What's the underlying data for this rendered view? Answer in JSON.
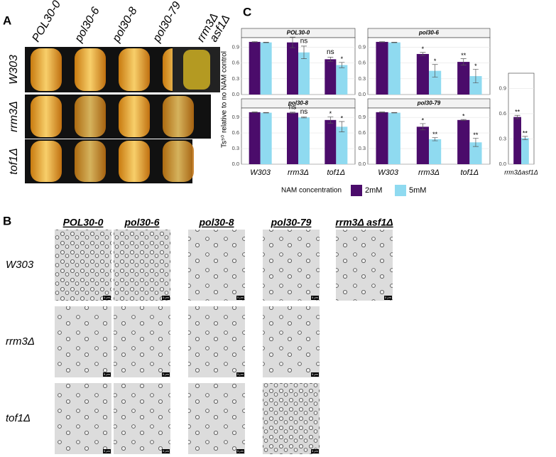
{
  "panel_a": {
    "label": "A",
    "columns": [
      "POL30-0",
      "pol30-6",
      "pol30-8",
      "pol30-79",
      [
        "rrm3Δ",
        "asf1Δ"
      ]
    ],
    "rows": [
      "W303",
      "rrm3Δ",
      "tof1Δ"
    ]
  },
  "panel_b": {
    "label": "B",
    "columns": [
      "POL30-0",
      "pol30-6",
      "pol30-8",
      "pol30-79",
      "rrm3Δ asf1Δ"
    ],
    "rows": [
      "W303",
      "rrm3Δ",
      "tof1Δ"
    ],
    "scale_bar": "5 μm"
  },
  "chart_data": {
    "type": "bar",
    "label": "C",
    "y_label": "Ts⁵⁰ relative to no NAM control",
    "legend_title": "NAM concentration",
    "series": [
      {
        "name": "2mM",
        "color": "#4b0c6b"
      },
      {
        "name": "5mM",
        "color": "#8fdaf0"
      }
    ],
    "categories": [
      "W303",
      "rrm3Δ",
      "tof1Δ"
    ],
    "ylim": [
      0,
      1.08
    ],
    "yticks": [
      {
        "value": 0,
        "label": "0.0"
      },
      0.3,
      0.6,
      0.9
    ],
    "facets": [
      {
        "title": "POL30-0",
        "series": [
          {
            "values": [
              1.0,
              0.99,
              0.67
            ],
            "errors": [
              0.005,
              0.1,
              0.04
            ],
            "significance": [
              null,
              null,
              "ns"
            ]
          },
          {
            "values": [
              0.99,
              0.8,
              0.56
            ],
            "errors": [
              0.005,
              0.12,
              0.05
            ],
            "significance": [
              null,
              "ns",
              "*"
            ]
          }
        ]
      },
      {
        "title": "pol30-6",
        "series": [
          {
            "values": [
              1.0,
              0.77,
              0.62
            ],
            "errors": [
              0.005,
              0.03,
              0.06
            ],
            "significance": [
              null,
              "*",
              "**"
            ]
          },
          {
            "values": [
              0.99,
              0.45,
              0.35
            ],
            "errors": [
              0.005,
              0.12,
              0.13
            ],
            "significance": [
              null,
              "*",
              "*"
            ]
          }
        ]
      },
      {
        "title": "pol30-8",
        "series": [
          {
            "values": [
              1.0,
              0.99,
              0.85
            ],
            "errors": [
              0.005,
              0.01,
              0.06
            ],
            "significance": [
              null,
              "ns",
              "*"
            ]
          },
          {
            "values": [
              0.99,
              0.9,
              0.72
            ],
            "errors": [
              0.005,
              0.01,
              0.1
            ],
            "significance": [
              null,
              "ns",
              "*"
            ]
          }
        ]
      },
      {
        "title": "pol30-79",
        "series": [
          {
            "values": [
              1.0,
              0.72,
              0.85
            ],
            "errors": [
              0.005,
              0.06,
              0.01
            ],
            "significance": [
              null,
              "*",
              "*"
            ]
          },
          {
            "values": [
              0.99,
              0.48,
              0.42
            ],
            "errors": [
              0.005,
              0.03,
              0.08
            ],
            "significance": [
              null,
              "**",
              "**"
            ]
          }
        ]
      }
    ],
    "extra": {
      "categories": [
        "rrm3Δasf1Δ"
      ],
      "series": [
        {
          "values": [
            0.56
          ],
          "errors": [
            0.02
          ],
          "significance": [
            "**"
          ]
        },
        {
          "values": [
            0.31
          ],
          "errors": [
            0.02
          ],
          "significance": [
            "**"
          ]
        }
      ]
    }
  }
}
